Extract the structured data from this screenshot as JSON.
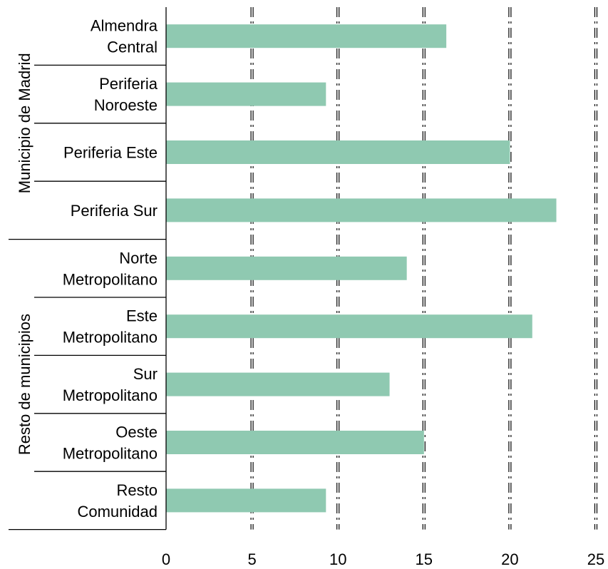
{
  "chart_data": {
    "type": "bar",
    "orientation": "horizontal",
    "groups": [
      {
        "name": "Municipio de Madrid",
        "categories": [
          "Almendra Central",
          "Periferia Noroeste",
          "Periferia Este",
          "Periferia Sur"
        ]
      },
      {
        "name": "Resto de municipios",
        "categories": [
          "Norte Metropolitano",
          "Este Metropolitano",
          "Sur Metropolitano",
          "Oeste Metropolitano",
          "Resto Comunidad"
        ]
      }
    ],
    "categories": [
      [
        "Almendra",
        "Central"
      ],
      [
        "Periferia",
        "Noroeste"
      ],
      [
        "Periferia Este"
      ],
      [
        "Periferia Sur"
      ],
      [
        "Norte",
        "Metropolitano"
      ],
      [
        "Este",
        "Metropolitano"
      ],
      [
        "Sur",
        "Metropolitano"
      ],
      [
        "Oeste",
        "Metropolitano"
      ],
      [
        "Resto",
        "Comunidad"
      ]
    ],
    "values": [
      16.3,
      9.3,
      20.0,
      22.7,
      14.0,
      21.3,
      13.0,
      15.0,
      9.3
    ],
    "xlim": [
      0,
      25
    ],
    "xticks": [
      "0",
      "5",
      "10",
      "15",
      "20",
      "25"
    ],
    "tick_values": [
      0,
      5,
      10,
      15,
      20,
      25
    ],
    "bar_color": "#8fc9b1",
    "grid": "vertical dashed",
    "title": "",
    "xlabel": "",
    "ylabel": ""
  }
}
